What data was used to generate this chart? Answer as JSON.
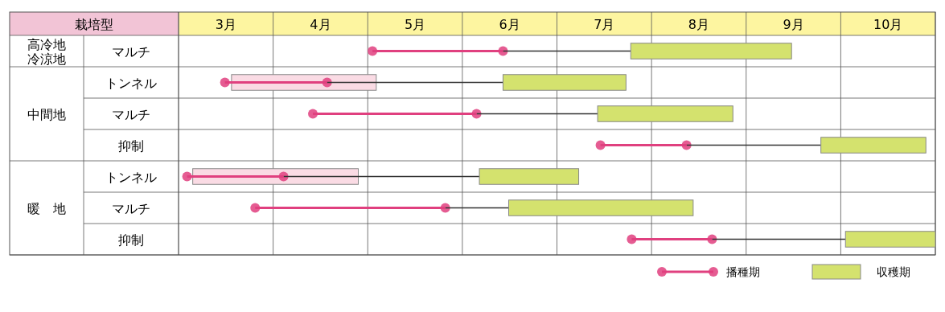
{
  "chart_data": {
    "type": "bar",
    "orientation": "horizontal",
    "ylabel": "栽培型",
    "categories": [
      "マルチ",
      "トンネル",
      "マルチ",
      "抑制",
      "トンネル",
      "マルチ",
      "抑制"
    ],
    "annotations": [
      "高冷地冷涼地",
      "中間地",
      "暖　地"
    ],
    "xlim": [
      3,
      11
    ],
    "xticks": [
      {
        "value": 3,
        "label": null
      },
      {
        "value": 3.5,
        "label": "3月"
      },
      {
        "value": 4,
        "label": null
      },
      {
        "value": 4.5,
        "label": "4月"
      },
      {
        "value": 5,
        "label": null
      },
      {
        "value": 5.5,
        "label": "5月"
      },
      {
        "value": 6,
        "label": null
      },
      {
        "value": 6.5,
        "label": "6月"
      },
      {
        "value": 7,
        "label": null
      },
      {
        "value": 7.5,
        "label": "7月"
      },
      {
        "value": 8,
        "label": null
      },
      {
        "value": 8.5,
        "label": "8月"
      },
      {
        "value": 9,
        "label": null
      },
      {
        "value": 9.5,
        "label": "9月"
      },
      {
        "value": 10,
        "label": null
      },
      {
        "value": 10.5,
        "label": "10月"
      },
      {
        "value": 11,
        "label": null
      }
    ],
    "grid": true,
    "legend": "bottom right",
    "series": [
      {
        "color": "#fadbe4",
        "base": [
          null,
          3.56,
          null,
          null,
          3.15,
          null,
          null
        ],
        "values": [
          null,
          1.53,
          null,
          null,
          1.75,
          null,
          null
        ]
      },
      {
        "type": "scatter",
        "color": "#e0407f",
        "values": [
          5.05,
          3.49,
          4.42,
          7.46,
          3.09,
          3.81,
          7.79
        ]
      },
      {
        "type": "scatter",
        "color": "#e0407f",
        "values": [
          6.43,
          4.57,
          6.15,
          8.37,
          4.11,
          5.82,
          8.64
        ]
      },
      {
        "color": "#333333",
        "marker": "none",
        "base": [
          6.43,
          4.57,
          6.15,
          8.37,
          4.11,
          5.82,
          8.64
        ],
        "values": [
          1.35,
          1.86,
          1.28,
          1.42,
          2.07,
          0.67,
          1.41
        ]
      },
      {
        "name": "播種期",
        "color": "#e0407f",
        "marker": "circle",
        "base": [
          5.05,
          3.49,
          4.42,
          7.46,
          3.09,
          3.81,
          7.79
        ],
        "values": [
          1.38,
          1.08,
          1.73,
          0.91,
          1.02,
          2.01,
          0.85
        ]
      },
      {
        "name": "収穫期",
        "color": "#d4e26e",
        "base": [
          7.78,
          6.43,
          7.43,
          9.79,
          6.18,
          6.49,
          10.05
        ],
        "values": [
          1.7,
          1.3,
          1.43,
          1.11,
          1.05,
          1.95,
          0.95
        ]
      }
    ]
  }
}
